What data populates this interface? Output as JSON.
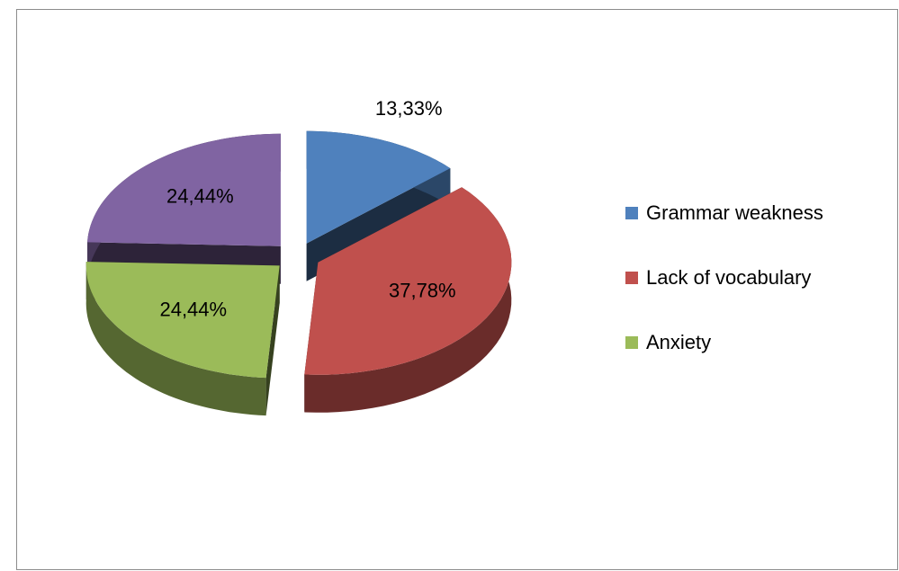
{
  "chart_data": {
    "type": "pie",
    "categories": [
      "Grammar weakness",
      "Lack of vocabulary",
      "Anxiety",
      null
    ],
    "values": [
      13.33,
      37.78,
      24.44,
      24.44
    ],
    "value_labels": [
      "13,33%",
      "37,78%",
      "24,44%",
      "24,44%"
    ],
    "colors": [
      "#4f81bd",
      "#c0504d",
      "#9bbb59",
      "#8064a2"
    ],
    "legend": "right"
  }
}
